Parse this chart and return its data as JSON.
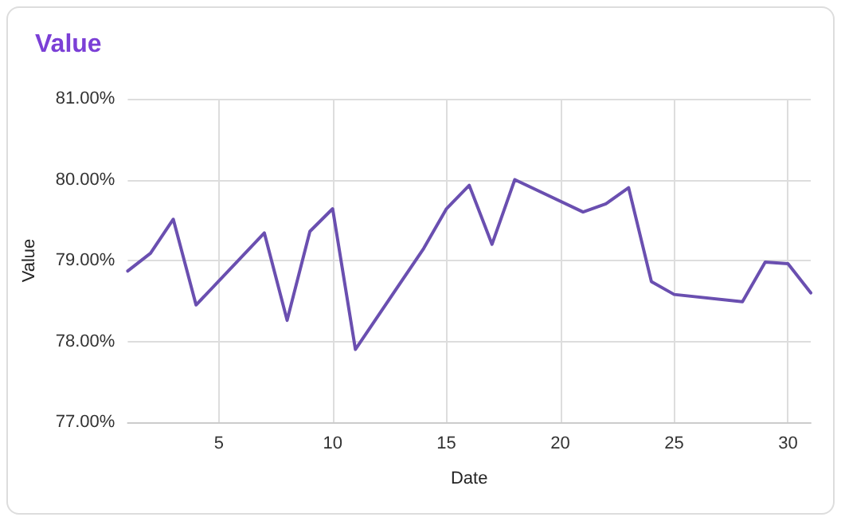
{
  "chart_data": {
    "type": "line",
    "title": "Value",
    "xlabel": "Date",
    "ylabel": "Value",
    "x": [
      1,
      2,
      3,
      4,
      7,
      8,
      9,
      10,
      11,
      14,
      15,
      16,
      17,
      18,
      21,
      22,
      23,
      24,
      25,
      28,
      29,
      30,
      31
    ],
    "series": [
      {
        "color": "#6a4fb0",
        "values": [
          78.87,
          79.09,
          79.51,
          78.45,
          79.34,
          78.26,
          79.36,
          79.64,
          77.9,
          79.15,
          79.64,
          79.93,
          79.2,
          80.0,
          79.6,
          79.7,
          79.9,
          78.74,
          78.58,
          78.49,
          78.98,
          78.96,
          78.6
        ]
      }
    ],
    "xlim": [
      1,
      31
    ],
    "xticks": [
      5,
      10,
      15,
      20,
      25,
      30
    ],
    "ylim": [
      77,
      81
    ],
    "yticks": [
      {
        "value": 77,
        "label": "77.00%"
      },
      {
        "value": 78,
        "label": "78.00%"
      },
      {
        "value": 79,
        "label": "79.00%"
      },
      {
        "value": 80,
        "label": "80.00%"
      },
      {
        "value": 81,
        "label": "81.00%"
      }
    ],
    "grid": true,
    "marker": "none",
    "line_style": "solid"
  }
}
